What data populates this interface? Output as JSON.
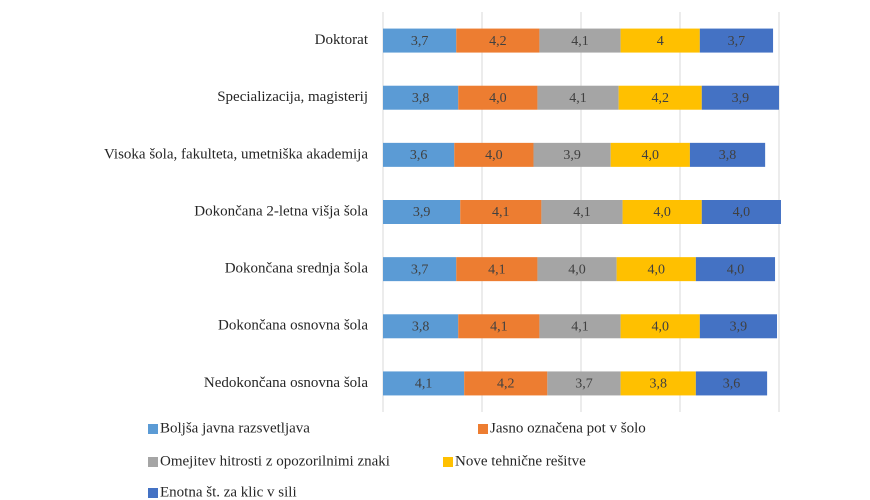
{
  "chart_data": {
    "type": "stacked-barh",
    "categories": [
      "Doktorat",
      "Specializacija, magisterij",
      "Visoka šola, fakulteta, umetniška akademija",
      "Dokončana 2-letna višja šola",
      "Dokončana srednja šola",
      "Dokončana osnovna šola",
      "Nedokončana osnovna šola"
    ],
    "series": [
      {
        "name": "Boljša javna razsvetljava",
        "color": "#5b9bd5",
        "values": [
          3.7,
          3.8,
          3.6,
          3.9,
          3.7,
          3.8,
          4.1
        ],
        "value_labels": [
          "3,7",
          "3,8",
          "3,6",
          "3,9",
          "3,7",
          "3,8",
          "4,1"
        ]
      },
      {
        "name": "Jasno označena pot v šolo",
        "color": "#ed7d31",
        "values": [
          4.2,
          4.0,
          4.0,
          4.1,
          4.1,
          4.1,
          4.2
        ],
        "value_labels": [
          "4,2",
          "4,0",
          "4,0",
          "4,1",
          "4,1",
          "4,1",
          "4,2"
        ]
      },
      {
        "name": "Omejitev hitrosti z opozorilnimi znaki",
        "color": "#a5a5a5",
        "values": [
          4.1,
          4.1,
          3.9,
          4.1,
          4.0,
          4.1,
          3.7
        ],
        "value_labels": [
          "4,1",
          "4,1",
          "3,9",
          "4,1",
          "4,0",
          "4,1",
          "3,7"
        ]
      },
      {
        "name": "Nove tehnične rešitve",
        "color": "#ffc000",
        "values": [
          4,
          4.2,
          4.0,
          4.0,
          4.0,
          4.0,
          3.8
        ],
        "value_labels": [
          "4",
          "4,2",
          "4,0",
          "4,0",
          "4,0",
          "4,0",
          "3,8"
        ]
      },
      {
        "name": "Enotna št. za klic v sili",
        "color": "#4472c4",
        "values": [
          3.7,
          3.9,
          3.8,
          4.0,
          4.0,
          3.9,
          3.6
        ],
        "value_labels": [
          "3,7",
          "3,9",
          "3,8",
          "4,0",
          "4,0",
          "3,9",
          "3,6"
        ]
      }
    ],
    "xlim": [
      0,
      20
    ],
    "xticks": [
      0,
      5,
      10,
      15,
      20
    ],
    "grid": true,
    "legend": "bottom"
  }
}
